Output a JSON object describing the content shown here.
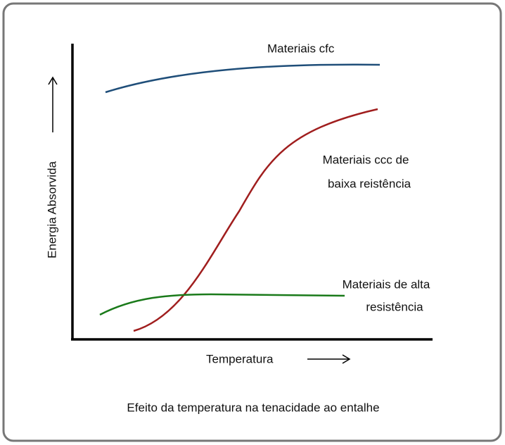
{
  "diagram": {
    "caption": "Efeito da temperatura na tenacidade ao entalhe",
    "x_axis_label": "Temperatura",
    "y_axis_label": "Energia Absorvida",
    "curves": [
      {
        "label_lines": [
          "Materiais cfc"
        ]
      },
      {
        "label_lines": [
          "Materiais ccc de",
          "baixa reistência"
        ]
      },
      {
        "label_lines": [
          "Materiais de alta",
          "resistência"
        ]
      }
    ]
  }
}
